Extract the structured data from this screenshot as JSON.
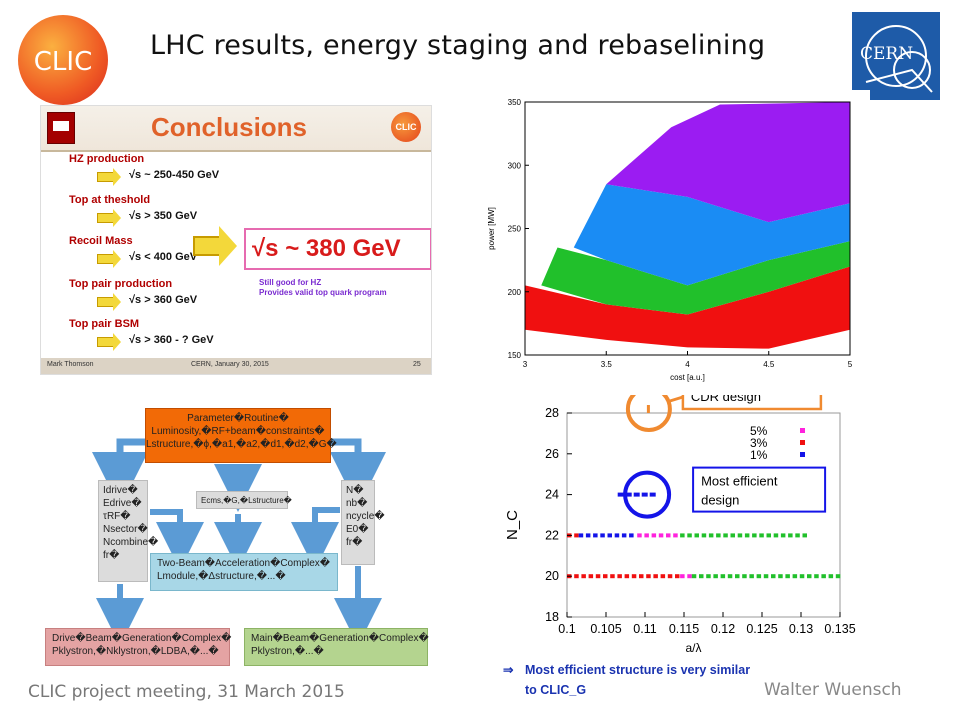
{
  "slide_title": "LHC results, energy staging and rebaselining",
  "footer_left": "CLIC project meeting, 31 March 2015",
  "footer_right": "Walter Wuensch",
  "conclusion": {
    "arrow": "⇒",
    "line1": "Most efficient structure is very similar",
    "line2": "to CLIC_G"
  },
  "logos": {
    "clic_text": "CLIC",
    "cern_text": "CERN"
  },
  "embedded_slide": {
    "title": "Conclusions",
    "items": [
      {
        "label": "HZ production",
        "value": "√s ~ 250-450 GeV"
      },
      {
        "label": "Top at theshold",
        "value": "√s > 350 GeV"
      },
      {
        "label": "Recoil Mass",
        "value": "√s < 400 GeV"
      },
      {
        "label": "Top pair production",
        "value": "√s > 360 GeV"
      },
      {
        "label": "Top pair BSM",
        "value": "√s > 360 - ? GeV"
      }
    ],
    "highlight": "√s ~ 380 GeV",
    "note_line1": "Still good for HZ",
    "note_line2": "Provides valid top quark program",
    "footer_author": "Mark Thomson",
    "footer_date": "CERN, January 30, 2015",
    "footer_page": "25",
    "logo_text": "CLIC"
  },
  "flowchart": {
    "top": {
      "line1": "Parameter�Routine�",
      "line2": "Luminosity,�RF+beam�constraints�",
      "line3": "Lstructure,�ϕ,�a1,�a2,�d1,�d2,�G�"
    },
    "left": [
      "Idrive�",
      "Edrive�",
      "τRF�",
      "Nsector�",
      "Ncombine�",
      "fr�"
    ],
    "mid": "Ecms,�G,�Lstructure�",
    "right": [
      "N�",
      "nb�",
      "ncycle�",
      "E0�",
      "fr�"
    ],
    "two_beam": {
      "line1": "Two-Beam�Acceleration�Complex�",
      "line2": "Lmodule,�Δstructure,�...�"
    },
    "drive": {
      "line1": "Drive�Beam�Generation�Complex�",
      "line2": "Pklystron,�Nklystron,�LDBA,�...�"
    },
    "main": {
      "line1": "Main�Beam�Generation�Complex�",
      "line2": "Pklystron,�...�"
    }
  },
  "colors": {
    "purple": "#9b1cf2",
    "blue": "#1a8cf4",
    "green": "#21c02b",
    "red": "#f01010",
    "magenta": "#ff22dd",
    "dark_blue": "#1414e8",
    "orange_box": "#f08a30",
    "cern_blue": "#1e5ba8"
  },
  "chart_data": [
    {
      "type": "area",
      "xlabel": "cost [a.u.]",
      "ylabel": "power [MW]",
      "xlim": [
        3,
        5
      ],
      "ylim": [
        150,
        350
      ],
      "x_ticks": [
        "3",
        "3.5",
        "4",
        "4.5",
        "5"
      ],
      "y_ticks": [
        "150",
        "200",
        "250",
        "300",
        "350"
      ],
      "series": [
        {
          "color": "red",
          "lower": [
            [
              3.0,
              170
            ],
            [
              3.5,
              162
            ],
            [
              4.0,
              156
            ],
            [
              4.5,
              155
            ],
            [
              5.0,
              170
            ]
          ],
          "upper": [
            [
              3.0,
              205
            ],
            [
              3.5,
              190
            ],
            [
              4.0,
              182
            ],
            [
              4.5,
              200
            ],
            [
              5.0,
              220
            ]
          ]
        },
        {
          "color": "green",
          "lower": [
            [
              3.1,
              205
            ],
            [
              3.5,
              190
            ],
            [
              4.0,
              182
            ],
            [
              4.5,
              200
            ],
            [
              5.0,
              220
            ]
          ],
          "upper": [
            [
              3.2,
              235
            ],
            [
              3.5,
              225
            ],
            [
              4.0,
              205
            ],
            [
              4.5,
              225
            ],
            [
              5.0,
              240
            ]
          ]
        },
        {
          "color": "blue",
          "lower": [
            [
              3.3,
              235
            ],
            [
              3.5,
              225
            ],
            [
              4.0,
              205
            ],
            [
              4.5,
              225
            ],
            [
              5.0,
              240
            ]
          ],
          "upper": [
            [
              3.5,
              285
            ],
            [
              4.0,
              275
            ],
            [
              4.5,
              255
            ],
            [
              5.0,
              270
            ]
          ]
        },
        {
          "color": "purple",
          "lower": [
            [
              3.5,
              285
            ],
            [
              4.0,
              275
            ],
            [
              4.5,
              255
            ],
            [
              5.0,
              270
            ]
          ],
          "upper": [
            [
              3.9,
              330
            ],
            [
              4.2,
              348
            ],
            [
              5.0,
              350
            ]
          ]
        }
      ]
    },
    {
      "type": "scatter",
      "xlabel": "a/λ",
      "ylabel": "N_C",
      "xlim": [
        0.1,
        0.135
      ],
      "ylim": [
        18,
        28
      ],
      "x_ticks": [
        "0.1",
        "0.105",
        "0.11",
        "0.115",
        "0.12",
        "0.125",
        "0.13",
        "0.135"
      ],
      "y_ticks": [
        "18",
        "20",
        "22",
        "24",
        "26",
        "28"
      ],
      "legend": [
        {
          "label": "5%",
          "color": "magenta"
        },
        {
          "label": "3%",
          "color": "red"
        },
        {
          "label": "1%",
          "color": "dark_blue"
        }
      ],
      "rows": [
        {
          "y": 22,
          "segments": [
            {
              "from": 0.1,
              "to": 0.1015,
              "color": "red"
            },
            {
              "from": 0.1015,
              "to": 0.109,
              "color": "dark_blue"
            },
            {
              "from": 0.109,
              "to": 0.1145,
              "color": "magenta"
            },
            {
              "from": 0.1145,
              "to": 0.1305,
              "color": "green"
            }
          ]
        },
        {
          "y": 20,
          "segments": [
            {
              "from": 0.1,
              "to": 0.1145,
              "color": "red"
            },
            {
              "from": 0.1145,
              "to": 0.116,
              "color": "magenta"
            },
            {
              "from": 0.116,
              "to": 0.1355,
              "color": "green"
            }
          ]
        },
        {
          "y": 24,
          "segments": [
            {
              "from": 0.1065,
              "to": 0.111,
              "color": "dark_blue"
            }
          ]
        }
      ],
      "annotations": [
        {
          "text": "CDR design",
          "x": 0.1105,
          "y": 28
        },
        {
          "text": "Most efficient",
          "text2": "design",
          "x": 0.1095,
          "y": 24
        }
      ]
    }
  ]
}
